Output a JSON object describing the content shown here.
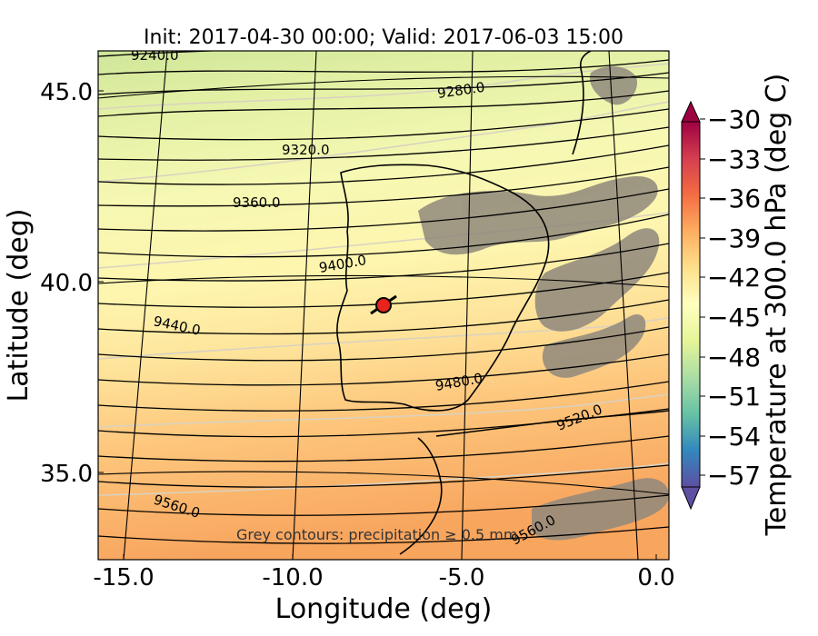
{
  "title": "Init: 2017-04-30 00:00; Valid: 2017-06-03 15:00",
  "x_axis": {
    "label": "Longitude (deg)",
    "ticks": [
      "-15.0",
      "-10.0",
      "-5.0",
      "0.0"
    ]
  },
  "y_axis": {
    "label": "Latitude (deg)",
    "ticks": [
      "45.0",
      "40.0",
      "35.0"
    ]
  },
  "colorbar": {
    "label": "Temperature at 300.0 hPa (deg C)",
    "ticks": [
      "−30",
      "−33",
      "−36",
      "−39",
      "−42",
      "−45",
      "−48",
      "−51",
      "−54",
      "−57"
    ],
    "colormap": "Spectral_r",
    "range": [
      -58.5,
      -28.5
    ]
  },
  "height_contours": {
    "labels": [
      "9240.0",
      "9280.0",
      "9320.0",
      "9360.0",
      "9400.0",
      "9440.0",
      "9480.0",
      "9520.0",
      "9560.0",
      "9560.0"
    ]
  },
  "note": "Grey contours: precipitation ≥ 0.5 mm",
  "marker": {
    "color": "#e8231c",
    "lat": 39.4,
    "lon": -7.6
  },
  "colors": {
    "north": "#d6ea9a",
    "mid": "#fdf6b0",
    "south": "#f9ad61",
    "terrain": "#8a8378"
  }
}
